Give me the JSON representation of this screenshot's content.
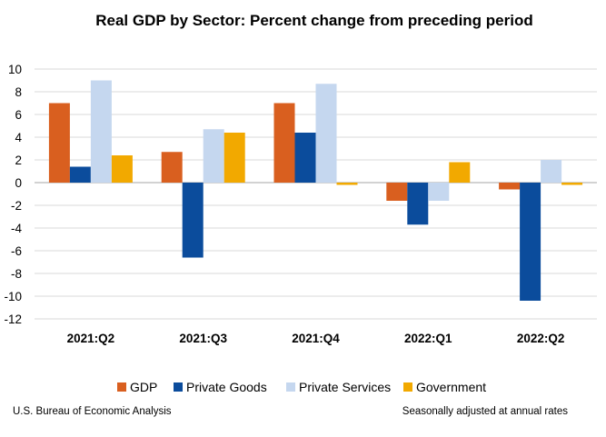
{
  "chart_data": {
    "type": "bar",
    "title": "Real GDP by Sector:  Percent change from preceding period",
    "xlabel": "",
    "ylabel": "",
    "categories": [
      "2021:Q2",
      "2021:Q3",
      "2021:Q4",
      "2022:Q1",
      "2022:Q2"
    ],
    "series": [
      {
        "name": "GDP",
        "color": "#D95F1F",
        "values": [
          7.0,
          2.7,
          7.0,
          -1.6,
          -0.6
        ]
      },
      {
        "name": "Private Goods",
        "color": "#0B4C9C",
        "values": [
          1.4,
          -6.6,
          4.4,
          -3.7,
          -10.4
        ]
      },
      {
        "name": "Private Services",
        "color": "#C5D7EF",
        "values": [
          9.0,
          4.7,
          8.7,
          -1.6,
          2.0
        ]
      },
      {
        "name": "Government",
        "color": "#F2A900",
        "values": [
          2.4,
          4.4,
          -0.2,
          1.8,
          -0.2
        ]
      }
    ],
    "ylim": [
      -12,
      10
    ],
    "yticks": [
      10,
      8,
      6,
      4,
      2,
      0,
      -2,
      -4,
      -6,
      -8,
      -10,
      -12
    ],
    "grid": true,
    "legend_position": "bottom",
    "footer_left": "U.S. Bureau of Economic Analysis",
    "footer_right": "Seasonally adjusted at annual rates"
  }
}
